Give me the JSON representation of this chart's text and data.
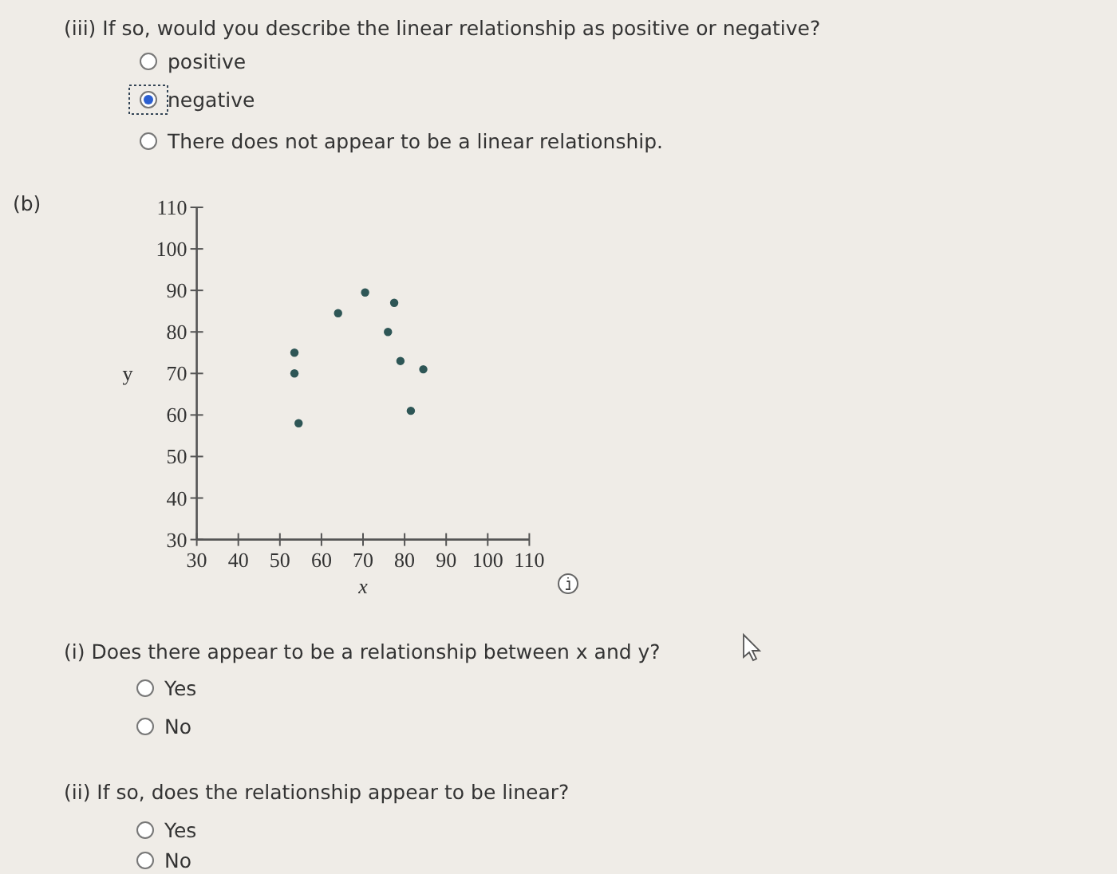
{
  "chart_data": {
    "type": "scatter",
    "xlabel": "x",
    "ylabel": "y",
    "x": [
      53.5,
      53.5,
      54.5,
      64,
      70.5,
      77.5,
      76,
      79,
      84.5,
      81.5
    ],
    "values": [
      75,
      70,
      58,
      84.5,
      89.5,
      87,
      80,
      73,
      71,
      61
    ],
    "color": "#2e5656",
    "marker": "circle",
    "grid": false,
    "xlim": [
      30,
      110
    ],
    "ylim": [
      30,
      110
    ],
    "xticks": [
      30,
      40,
      50,
      60,
      70,
      80,
      90,
      100,
      110
    ],
    "yticks": [
      30,
      40,
      50,
      60,
      70,
      80,
      90,
      100,
      110
    ],
    "annotations": [
      "(iii) If so, would you describe the linear relationship as positive or negative?",
      "positive",
      "negative",
      "There does not appear to be a linear relationship.",
      "(b)",
      "(i) Does there appear to be a relationship between x and y?",
      "Yes",
      "No",
      "(ii) If so, does the relationship appear to be linear?",
      "Yes",
      "No"
    ]
  }
}
